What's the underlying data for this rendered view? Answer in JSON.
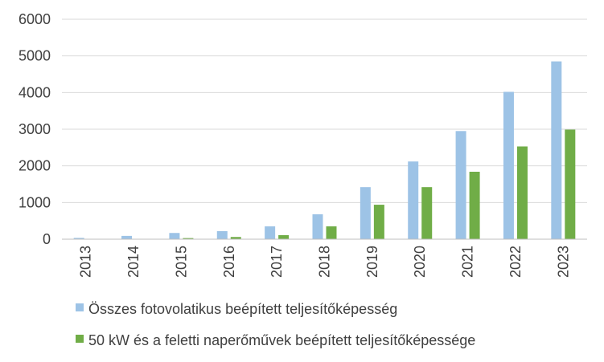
{
  "chart_data": {
    "type": "bar",
    "categories": [
      "2013",
      "2014",
      "2015",
      "2016",
      "2017",
      "2018",
      "2019",
      "2020",
      "2021",
      "2022",
      "2023"
    ],
    "series": [
      {
        "name": "Összes fotovolatikus beépített teljesítőképesség",
        "color": "#9DC3E6",
        "values": [
          35,
          90,
          170,
          220,
          350,
          680,
          1420,
          2120,
          2950,
          4020,
          4850
        ]
      },
      {
        "name": "50 kW és a feletti naperőművek beépített teljesítőképessége",
        "color": "#70AD47",
        "values": [
          0,
          10,
          30,
          60,
          110,
          350,
          940,
          1420,
          1840,
          2530,
          2990
        ]
      }
    ],
    "yticks": [
      "0",
      "1000",
      "2000",
      "3000",
      "4000",
      "5000",
      "6000"
    ],
    "ylim": [
      0,
      6000
    ],
    "grid": true,
    "legend_position": "bottom"
  }
}
